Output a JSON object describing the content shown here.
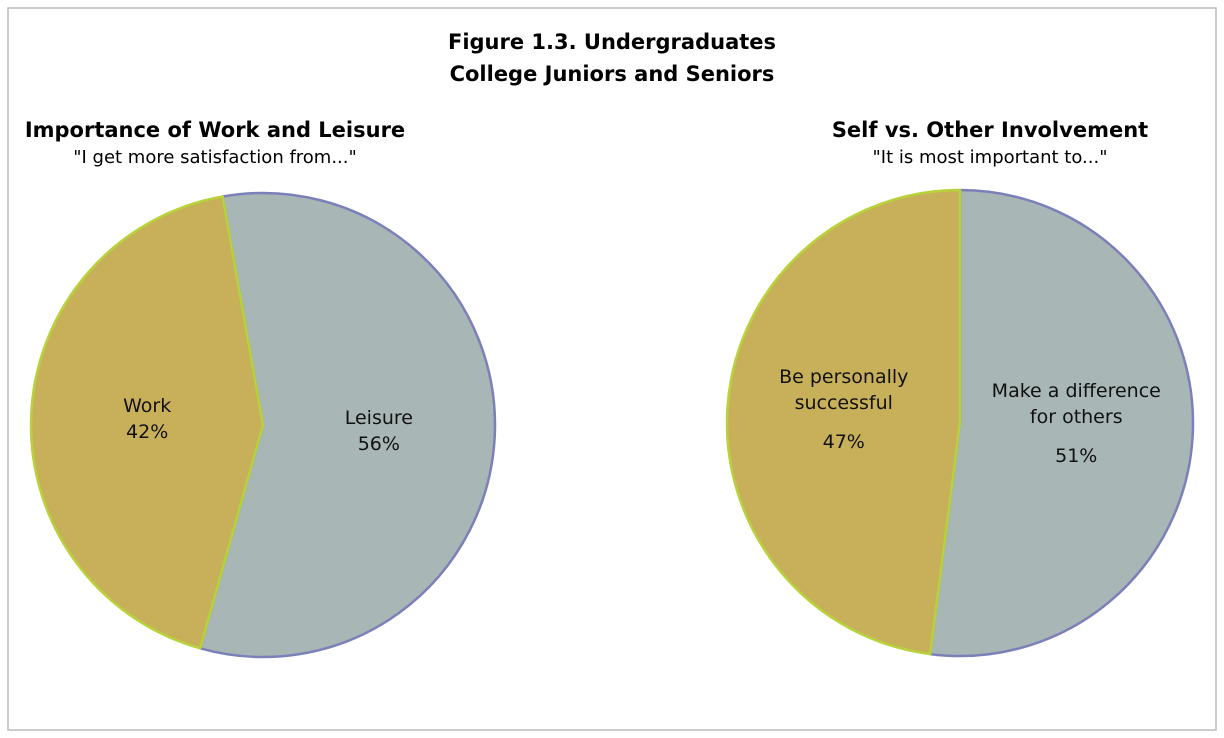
{
  "title": "Figure 1.3. Undergraduates",
  "subtitle": "College Juniors and Seniors",
  "chart_data": [
    {
      "type": "pie",
      "title": "Importance of Work and Leisure",
      "subtitle": "\"I get more satisfaction from...\"",
      "categories": [
        "Work",
        "Leisure"
      ],
      "values": [
        42,
        56
      ],
      "value_labels": [
        "42%",
        "56%"
      ],
      "colors": [
        "#c8b05a",
        "#a9b6b6"
      ],
      "edge_colors": [
        "#b8d33a",
        "#7c80b8"
      ]
    },
    {
      "type": "pie",
      "title": "Self vs. Other Involvement",
      "subtitle": "\"It is most important to...\"",
      "categories": [
        "Be personally successful",
        "Make a difference for others"
      ],
      "values": [
        47,
        51
      ],
      "value_labels": [
        "47%",
        "51%"
      ],
      "colors": [
        "#c8b05a",
        "#a9b6b6"
      ],
      "edge_colors": [
        "#b8d33a",
        "#7c80b8"
      ]
    }
  ]
}
